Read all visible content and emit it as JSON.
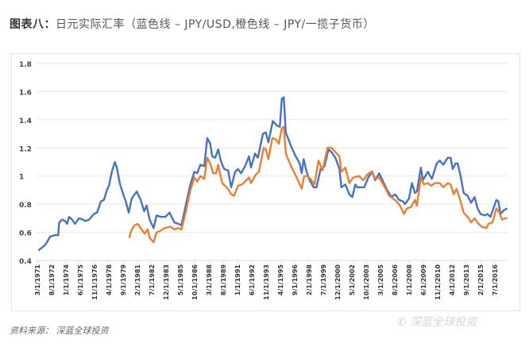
{
  "title": {
    "prefix": "图表八：",
    "text": "日元实际汇率（蓝色线 – JPY/USD,橙色线 – JPY/一揽子货币）"
  },
  "source": "资料来源： 深蓝全球投资",
  "watermark": "深蓝全球投资",
  "chart_data": {
    "type": "line",
    "title": "",
    "xlabel": "",
    "ylabel": "",
    "ylim": [
      0.4,
      1.8
    ],
    "yticks": [
      "0.4",
      "0.6",
      "0.8",
      "1",
      "1.2",
      "1.4",
      "1.6",
      "1.8"
    ],
    "grid": true,
    "xticks": [
      "3/1/1971",
      "8/1/1972",
      "1/1/1974",
      "6/1/1975",
      "11/1/1976",
      "4/1/1978",
      "9/1/1979",
      "2/1/1981",
      "7/1/1982",
      "12/1/1983",
      "5/1/1985",
      "10/1/1986",
      "3/1/1988",
      "8/1/1989",
      "1/1/1991",
      "6/1/1992",
      "11/1/1993",
      "4/1/1995",
      "9/1/1996",
      "2/1/1998",
      "7/1/1999",
      "12/1/2000",
      "5/1/2002",
      "10/1/2003",
      "3/1/2005",
      "8/1/2006",
      "1/1/2008",
      "6/1/2009",
      "11/1/2010",
      "4/1/2012",
      "9/1/2013",
      "2/1/2015",
      "7/1/2016"
    ],
    "xlim": [
      1971.2,
      2018.6
    ],
    "series": [
      {
        "color": "#4472c4",
        "points": [
          [
            1971.3,
            0.47
          ],
          [
            1972.0,
            0.51
          ],
          [
            1972.5,
            0.57
          ],
          [
            1973.0,
            0.58
          ],
          [
            1973.3,
            0.58
          ],
          [
            1973.4,
            0.67
          ],
          [
            1973.7,
            0.69
          ],
          [
            1974.0,
            0.68
          ],
          [
            1974.2,
            0.66
          ],
          [
            1974.4,
            0.71
          ],
          [
            1974.7,
            0.69
          ],
          [
            1975.0,
            0.66
          ],
          [
            1975.4,
            0.7
          ],
          [
            1975.8,
            0.69
          ],
          [
            1976.0,
            0.68
          ],
          [
            1976.4,
            0.69
          ],
          [
            1976.9,
            0.73
          ],
          [
            1977.2,
            0.74
          ],
          [
            1977.6,
            0.82
          ],
          [
            1977.9,
            0.83
          ],
          [
            1978.2,
            0.9
          ],
          [
            1978.4,
            0.93
          ],
          [
            1978.7,
            1.03
          ],
          [
            1979.0,
            1.1
          ],
          [
            1979.2,
            1.06
          ],
          [
            1979.5,
            0.95
          ],
          [
            1979.8,
            0.88
          ],
          [
            1980.1,
            0.82
          ],
          [
            1980.4,
            0.74
          ],
          [
            1980.7,
            0.84
          ],
          [
            1981.0,
            0.87
          ],
          [
            1981.2,
            0.89
          ],
          [
            1981.6,
            0.83
          ],
          [
            1981.95,
            0.75
          ],
          [
            1982.2,
            0.79
          ],
          [
            1982.5,
            0.69
          ],
          [
            1982.9,
            0.63
          ],
          [
            1983.2,
            0.72
          ],
          [
            1983.6,
            0.71
          ],
          [
            1984.1,
            0.71
          ],
          [
            1984.5,
            0.74
          ],
          [
            1985.0,
            0.67
          ],
          [
            1985.4,
            0.66
          ],
          [
            1985.7,
            0.65
          ],
          [
            1986.1,
            0.78
          ],
          [
            1986.6,
            0.94
          ],
          [
            1987.0,
            1.03
          ],
          [
            1987.3,
            1.02
          ],
          [
            1987.6,
            1.08
          ],
          [
            1988.0,
            1.07
          ],
          [
            1988.3,
            1.27
          ],
          [
            1988.6,
            1.23
          ],
          [
            1988.8,
            1.14
          ],
          [
            1989.1,
            1.13
          ],
          [
            1989.4,
            1.19
          ],
          [
            1989.7,
            1.1
          ],
          [
            1990.0,
            1.05
          ],
          [
            1990.4,
            1.04
          ],
          [
            1990.7,
            0.92
          ],
          [
            1991.1,
            1.03
          ],
          [
            1991.4,
            1.05
          ],
          [
            1991.7,
            1.02
          ],
          [
            1992.1,
            1.07
          ],
          [
            1992.5,
            1.14
          ],
          [
            1992.7,
            1.06
          ],
          [
            1993.1,
            1.16
          ],
          [
            1993.4,
            1.13
          ],
          [
            1993.9,
            1.3
          ],
          [
            1994.2,
            1.31
          ],
          [
            1994.45,
            1.24
          ],
          [
            1994.9,
            1.39
          ],
          [
            1995.3,
            1.36
          ],
          [
            1995.6,
            1.35
          ],
          [
            1995.8,
            1.55
          ],
          [
            1996.0,
            1.56
          ],
          [
            1996.2,
            1.31
          ],
          [
            1996.8,
            1.2
          ],
          [
            1997.2,
            1.14
          ],
          [
            1997.6,
            1.09
          ],
          [
            1997.8,
            1.02
          ],
          [
            1998.0,
            1.12
          ],
          [
            1998.3,
            1.03
          ],
          [
            1998.6,
            0.97
          ],
          [
            1999.0,
            0.92
          ],
          [
            1999.3,
            0.92
          ],
          [
            1999.7,
            1.05
          ],
          [
            2000.1,
            1.07
          ],
          [
            2000.5,
            1.19
          ],
          [
            2000.8,
            1.17
          ],
          [
            2001.2,
            1.13
          ],
          [
            2001.6,
            1.05
          ],
          [
            2001.8,
            0.92
          ],
          [
            2002.2,
            0.94
          ],
          [
            2002.6,
            0.87
          ],
          [
            2002.9,
            0.85
          ],
          [
            2003.2,
            0.94
          ],
          [
            2003.4,
            0.92
          ],
          [
            2004.1,
            0.92
          ],
          [
            2004.5,
            0.99
          ],
          [
            2004.9,
            1.03
          ],
          [
            2005.2,
            0.97
          ],
          [
            2005.6,
            1.02
          ],
          [
            2006.0,
            0.96
          ],
          [
            2006.4,
            0.9
          ],
          [
            2006.85,
            0.85
          ],
          [
            2007.2,
            0.87
          ],
          [
            2007.6,
            0.83
          ],
          [
            2008.0,
            0.82
          ],
          [
            2008.2,
            0.8
          ],
          [
            2008.6,
            0.84
          ],
          [
            2008.9,
            0.95
          ],
          [
            2009.2,
            0.88
          ],
          [
            2009.4,
            0.89
          ],
          [
            2009.8,
            1.06
          ],
          [
            2010.0,
            0.97
          ],
          [
            2010.5,
            1.03
          ],
          [
            2010.9,
            0.98
          ],
          [
            2011.4,
            1.09
          ],
          [
            2011.7,
            1.11
          ],
          [
            2012.05,
            1.08
          ],
          [
            2012.5,
            1.13
          ],
          [
            2012.8,
            1.13
          ],
          [
            2013.0,
            1.05
          ],
          [
            2013.3,
            1.09
          ],
          [
            2013.5,
            1.09
          ],
          [
            2013.8,
            1.0
          ],
          [
            2014.1,
            0.88
          ],
          [
            2014.5,
            0.86
          ],
          [
            2014.85,
            0.81
          ],
          [
            2015.2,
            0.85
          ],
          [
            2015.5,
            0.77
          ],
          [
            2015.8,
            0.73
          ],
          [
            2016.2,
            0.72
          ],
          [
            2016.5,
            0.73
          ],
          [
            2016.8,
            0.71
          ],
          [
            2017.2,
            0.79
          ],
          [
            2017.4,
            0.83
          ],
          [
            2017.6,
            0.82
          ],
          [
            2017.8,
            0.73
          ],
          [
            2018.2,
            0.76
          ],
          [
            2018.5,
            0.77
          ]
        ]
      },
      {
        "color": "#ed7d31",
        "points": [
          [
            1980.45,
            0.56
          ],
          [
            1980.7,
            0.62
          ],
          [
            1981.0,
            0.65
          ],
          [
            1981.3,
            0.66
          ],
          [
            1981.6,
            0.63
          ],
          [
            1982.0,
            0.59
          ],
          [
            1982.3,
            0.62
          ],
          [
            1982.5,
            0.56
          ],
          [
            1982.9,
            0.53
          ],
          [
            1983.2,
            0.6
          ],
          [
            1983.6,
            0.61
          ],
          [
            1984.0,
            0.63
          ],
          [
            1984.6,
            0.64
          ],
          [
            1985.0,
            0.62
          ],
          [
            1985.4,
            0.63
          ],
          [
            1985.7,
            0.62
          ],
          [
            1986.1,
            0.73
          ],
          [
            1986.6,
            0.9
          ],
          [
            1987.0,
            0.99
          ],
          [
            1987.3,
            0.96
          ],
          [
            1987.6,
            1.0
          ],
          [
            1988.0,
            0.98
          ],
          [
            1988.3,
            1.13
          ],
          [
            1988.6,
            1.09
          ],
          [
            1988.9,
            1.02
          ],
          [
            1989.2,
            1.02
          ],
          [
            1989.4,
            1.08
          ],
          [
            1989.8,
            0.95
          ],
          [
            1990.4,
            0.91
          ],
          [
            1990.7,
            0.87
          ],
          [
            1991.0,
            0.86
          ],
          [
            1991.4,
            0.93
          ],
          [
            1991.8,
            0.94
          ],
          [
            1992.1,
            0.96
          ],
          [
            1992.5,
            0.99
          ],
          [
            1992.7,
            0.95
          ],
          [
            1993.2,
            1.01
          ],
          [
            1993.5,
            1.03
          ],
          [
            1993.97,
            1.2
          ],
          [
            1994.2,
            1.19
          ],
          [
            1994.45,
            1.12
          ],
          [
            1994.85,
            1.27
          ],
          [
            1995.2,
            1.26
          ],
          [
            1995.5,
            1.23
          ],
          [
            1995.8,
            1.34
          ],
          [
            1996.0,
            1.35
          ],
          [
            1996.2,
            1.16
          ],
          [
            1996.8,
            1.06
          ],
          [
            1997.3,
            0.99
          ],
          [
            1997.8,
            0.91
          ],
          [
            1998.05,
            1.0
          ],
          [
            1998.4,
            1.0
          ],
          [
            1998.8,
            0.97
          ],
          [
            1999.1,
            0.94
          ],
          [
            1999.5,
            1.11
          ],
          [
            1999.9,
            1.04
          ],
          [
            2000.4,
            1.2
          ],
          [
            2000.8,
            1.2
          ],
          [
            2001.2,
            1.17
          ],
          [
            2001.6,
            1.14
          ],
          [
            2001.8,
            1.03
          ],
          [
            2002.2,
            1.06
          ],
          [
            2002.6,
            0.95
          ],
          [
            2003.0,
            0.99
          ],
          [
            2003.6,
            1.0
          ],
          [
            2004.0,
            0.97
          ],
          [
            2004.4,
            1.01
          ],
          [
            2004.8,
            1.03
          ],
          [
            2005.25,
            0.98
          ],
          [
            2005.6,
            0.99
          ],
          [
            2006.1,
            0.93
          ],
          [
            2006.6,
            0.86
          ],
          [
            2007.2,
            0.83
          ],
          [
            2007.7,
            0.79
          ],
          [
            2008.1,
            0.73
          ],
          [
            2008.4,
            0.77
          ],
          [
            2008.8,
            0.78
          ],
          [
            2009.2,
            0.83
          ],
          [
            2009.4,
            0.79
          ],
          [
            2009.8,
            0.99
          ],
          [
            2010.1,
            0.94
          ],
          [
            2010.5,
            0.95
          ],
          [
            2010.85,
            0.93
          ],
          [
            2011.2,
            0.95
          ],
          [
            2011.7,
            0.95
          ],
          [
            2012.05,
            0.92
          ],
          [
            2012.5,
            0.95
          ],
          [
            2012.8,
            0.94
          ],
          [
            2013.1,
            0.87
          ],
          [
            2013.4,
            0.91
          ],
          [
            2013.8,
            0.82
          ],
          [
            2014.1,
            0.74
          ],
          [
            2014.5,
            0.71
          ],
          [
            2014.85,
            0.67
          ],
          [
            2015.2,
            0.7
          ],
          [
            2015.6,
            0.66
          ],
          [
            2015.9,
            0.64
          ],
          [
            2016.4,
            0.63
          ],
          [
            2016.6,
            0.66
          ],
          [
            2017.0,
            0.67
          ],
          [
            2017.4,
            0.77
          ],
          [
            2017.7,
            0.74
          ],
          [
            2017.97,
            0.69
          ],
          [
            2018.3,
            0.7
          ],
          [
            2018.5,
            0.7
          ]
        ]
      }
    ]
  }
}
